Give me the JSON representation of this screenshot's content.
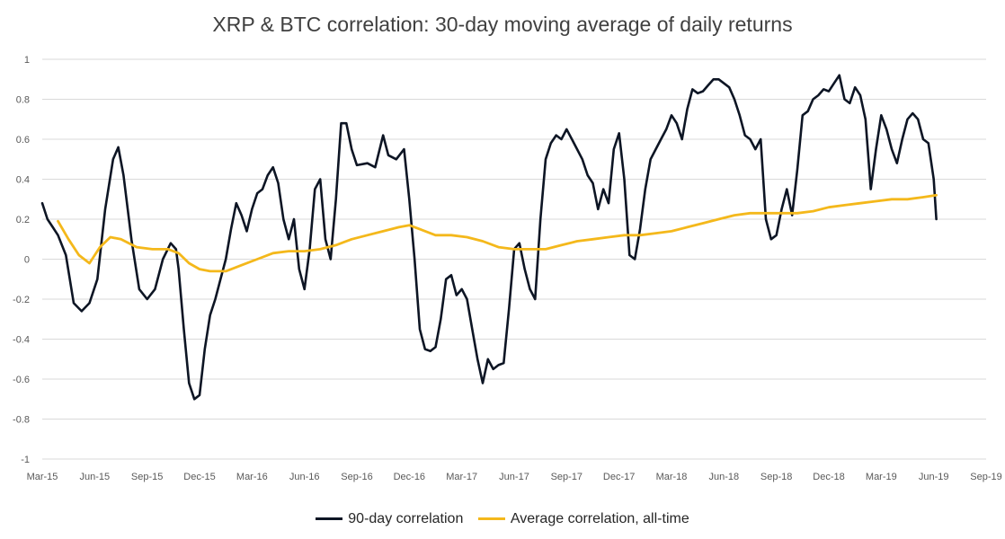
{
  "chart_data": {
    "type": "line",
    "title": "XRP & BTC correlation: 30-day moving average of daily returns",
    "xlabel": "",
    "ylabel": "",
    "ylim": [
      -1,
      1
    ],
    "yticks": [
      "1",
      "0.8",
      "0.6",
      "0.4",
      "0.2",
      "0",
      "-0.2",
      "-0.4",
      "-0.6",
      "-0.8",
      "-1"
    ],
    "xticks": [
      "Mar-15",
      "Jun-15",
      "Sep-15",
      "Dec-15",
      "Mar-16",
      "Jun-16",
      "Sep-16",
      "Dec-16",
      "Mar-17",
      "Jun-17",
      "Sep-17",
      "Dec-17",
      "Mar-18",
      "Jun-18",
      "Sep-18",
      "Dec-18",
      "Mar-19",
      "Jun-19",
      "Sep-19"
    ],
    "grid": true,
    "legend_position": "bottom",
    "series": [
      {
        "name": "90-day correlation",
        "color": "#0d1524",
        "points": [
          [
            0.0,
            0.28
          ],
          [
            0.1,
            0.2
          ],
          [
            0.2,
            0.16
          ],
          [
            0.3,
            0.12
          ],
          [
            0.45,
            0.02
          ],
          [
            0.6,
            -0.22
          ],
          [
            0.75,
            -0.26
          ],
          [
            0.9,
            -0.22
          ],
          [
            1.05,
            -0.1
          ],
          [
            1.2,
            0.25
          ],
          [
            1.35,
            0.5
          ],
          [
            1.45,
            0.56
          ],
          [
            1.55,
            0.42
          ],
          [
            1.7,
            0.1
          ],
          [
            1.85,
            -0.15
          ],
          [
            2.0,
            -0.2
          ],
          [
            2.15,
            -0.15
          ],
          [
            2.3,
            0.0
          ],
          [
            2.45,
            0.08
          ],
          [
            2.55,
            0.05
          ],
          [
            2.6,
            -0.05
          ],
          [
            2.7,
            -0.35
          ],
          [
            2.8,
            -0.62
          ],
          [
            2.9,
            -0.7
          ],
          [
            3.0,
            -0.68
          ],
          [
            3.1,
            -0.45
          ],
          [
            3.2,
            -0.28
          ],
          [
            3.3,
            -0.2
          ],
          [
            3.4,
            -0.1
          ],
          [
            3.5,
            0.0
          ],
          [
            3.6,
            0.15
          ],
          [
            3.7,
            0.28
          ],
          [
            3.8,
            0.22
          ],
          [
            3.9,
            0.14
          ],
          [
            4.0,
            0.25
          ],
          [
            4.1,
            0.33
          ],
          [
            4.2,
            0.35
          ],
          [
            4.3,
            0.42
          ],
          [
            4.4,
            0.46
          ],
          [
            4.5,
            0.38
          ],
          [
            4.6,
            0.2
          ],
          [
            4.7,
            0.1
          ],
          [
            4.8,
            0.2
          ],
          [
            4.9,
            -0.05
          ],
          [
            5.0,
            -0.15
          ],
          [
            5.1,
            0.05
          ],
          [
            5.2,
            0.35
          ],
          [
            5.3,
            0.4
          ],
          [
            5.4,
            0.1
          ],
          [
            5.5,
            0.0
          ],
          [
            5.6,
            0.3
          ],
          [
            5.7,
            0.68
          ],
          [
            5.8,
            0.68
          ],
          [
            5.9,
            0.55
          ],
          [
            6.0,
            0.47
          ],
          [
            6.2,
            0.48
          ],
          [
            6.35,
            0.46
          ],
          [
            6.5,
            0.62
          ],
          [
            6.6,
            0.52
          ],
          [
            6.75,
            0.5
          ],
          [
            6.9,
            0.55
          ],
          [
            7.0,
            0.3
          ],
          [
            7.1,
            0.0
          ],
          [
            7.2,
            -0.35
          ],
          [
            7.3,
            -0.45
          ],
          [
            7.4,
            -0.46
          ],
          [
            7.5,
            -0.44
          ],
          [
            7.6,
            -0.3
          ],
          [
            7.7,
            -0.1
          ],
          [
            7.8,
            -0.08
          ],
          [
            7.9,
            -0.18
          ],
          [
            8.0,
            -0.15
          ],
          [
            8.1,
            -0.2
          ],
          [
            8.2,
            -0.35
          ],
          [
            8.3,
            -0.5
          ],
          [
            8.4,
            -0.62
          ],
          [
            8.5,
            -0.5
          ],
          [
            8.6,
            -0.55
          ],
          [
            8.7,
            -0.53
          ],
          [
            8.8,
            -0.52
          ],
          [
            8.9,
            -0.25
          ],
          [
            9.0,
            0.05
          ],
          [
            9.1,
            0.08
          ],
          [
            9.2,
            -0.05
          ],
          [
            9.3,
            -0.15
          ],
          [
            9.4,
            -0.2
          ],
          [
            9.5,
            0.2
          ],
          [
            9.6,
            0.5
          ],
          [
            9.7,
            0.58
          ],
          [
            9.8,
            0.62
          ],
          [
            9.9,
            0.6
          ],
          [
            10.0,
            0.65
          ],
          [
            10.1,
            0.6
          ],
          [
            10.2,
            0.55
          ],
          [
            10.3,
            0.5
          ],
          [
            10.4,
            0.42
          ],
          [
            10.5,
            0.38
          ],
          [
            10.6,
            0.25
          ],
          [
            10.7,
            0.35
          ],
          [
            10.8,
            0.28
          ],
          [
            10.9,
            0.55
          ],
          [
            11.0,
            0.63
          ],
          [
            11.1,
            0.4
          ],
          [
            11.2,
            0.02
          ],
          [
            11.3,
            0.0
          ],
          [
            11.4,
            0.15
          ],
          [
            11.5,
            0.35
          ],
          [
            11.6,
            0.5
          ],
          [
            11.7,
            0.55
          ],
          [
            11.8,
            0.6
          ],
          [
            11.9,
            0.65
          ],
          [
            12.0,
            0.72
          ],
          [
            12.1,
            0.68
          ],
          [
            12.2,
            0.6
          ],
          [
            12.3,
            0.75
          ],
          [
            12.4,
            0.85
          ],
          [
            12.5,
            0.83
          ],
          [
            12.6,
            0.84
          ],
          [
            12.7,
            0.87
          ],
          [
            12.8,
            0.9
          ],
          [
            12.9,
            0.9
          ],
          [
            13.0,
            0.88
          ],
          [
            13.1,
            0.86
          ],
          [
            13.2,
            0.8
          ],
          [
            13.3,
            0.72
          ],
          [
            13.4,
            0.62
          ],
          [
            13.5,
            0.6
          ],
          [
            13.6,
            0.55
          ],
          [
            13.7,
            0.6
          ],
          [
            13.8,
            0.2
          ],
          [
            13.9,
            0.1
          ],
          [
            14.0,
            0.12
          ],
          [
            14.1,
            0.25
          ],
          [
            14.2,
            0.35
          ],
          [
            14.3,
            0.22
          ],
          [
            14.4,
            0.45
          ],
          [
            14.5,
            0.72
          ],
          [
            14.6,
            0.74
          ],
          [
            14.7,
            0.8
          ],
          [
            14.8,
            0.82
          ],
          [
            14.9,
            0.85
          ],
          [
            15.0,
            0.84
          ],
          [
            15.1,
            0.88
          ],
          [
            15.2,
            0.92
          ],
          [
            15.3,
            0.8
          ],
          [
            15.4,
            0.78
          ],
          [
            15.5,
            0.86
          ],
          [
            15.6,
            0.82
          ],
          [
            15.7,
            0.7
          ],
          [
            15.8,
            0.35
          ],
          [
            15.9,
            0.55
          ],
          [
            16.0,
            0.72
          ],
          [
            16.1,
            0.65
          ],
          [
            16.2,
            0.55
          ],
          [
            16.3,
            0.48
          ],
          [
            16.4,
            0.6
          ],
          [
            16.5,
            0.7
          ],
          [
            16.6,
            0.73
          ],
          [
            16.7,
            0.7
          ],
          [
            16.8,
            0.6
          ],
          [
            16.9,
            0.58
          ],
          [
            17.0,
            0.4
          ],
          [
            17.05,
            0.2
          ]
        ]
      },
      {
        "name": "Average correlation, all-time",
        "color": "#f4b81b",
        "points": [
          [
            0.3,
            0.19
          ],
          [
            0.5,
            0.1
          ],
          [
            0.7,
            0.02
          ],
          [
            0.9,
            -0.02
          ],
          [
            1.1,
            0.06
          ],
          [
            1.3,
            0.11
          ],
          [
            1.5,
            0.1
          ],
          [
            1.8,
            0.06
          ],
          [
            2.1,
            0.05
          ],
          [
            2.4,
            0.05
          ],
          [
            2.6,
            0.03
          ],
          [
            2.8,
            -0.02
          ],
          [
            3.0,
            -0.05
          ],
          [
            3.2,
            -0.06
          ],
          [
            3.5,
            -0.06
          ],
          [
            3.8,
            -0.03
          ],
          [
            4.1,
            0.0
          ],
          [
            4.4,
            0.03
          ],
          [
            4.7,
            0.04
          ],
          [
            5.0,
            0.04
          ],
          [
            5.3,
            0.05
          ],
          [
            5.6,
            0.07
          ],
          [
            5.9,
            0.1
          ],
          [
            6.2,
            0.12
          ],
          [
            6.5,
            0.14
          ],
          [
            6.8,
            0.16
          ],
          [
            7.0,
            0.17
          ],
          [
            7.2,
            0.15
          ],
          [
            7.5,
            0.12
          ],
          [
            7.8,
            0.12
          ],
          [
            8.1,
            0.11
          ],
          [
            8.4,
            0.09
          ],
          [
            8.7,
            0.06
          ],
          [
            9.0,
            0.05
          ],
          [
            9.3,
            0.05
          ],
          [
            9.6,
            0.05
          ],
          [
            9.9,
            0.07
          ],
          [
            10.2,
            0.09
          ],
          [
            10.5,
            0.1
          ],
          [
            10.8,
            0.11
          ],
          [
            11.1,
            0.12
          ],
          [
            11.4,
            0.12
          ],
          [
            11.7,
            0.13
          ],
          [
            12.0,
            0.14
          ],
          [
            12.3,
            0.16
          ],
          [
            12.6,
            0.18
          ],
          [
            12.9,
            0.2
          ],
          [
            13.2,
            0.22
          ],
          [
            13.5,
            0.23
          ],
          [
            13.8,
            0.23
          ],
          [
            14.1,
            0.23
          ],
          [
            14.4,
            0.23
          ],
          [
            14.7,
            0.24
          ],
          [
            15.0,
            0.26
          ],
          [
            15.3,
            0.27
          ],
          [
            15.6,
            0.28
          ],
          [
            15.9,
            0.29
          ],
          [
            16.2,
            0.3
          ],
          [
            16.5,
            0.3
          ],
          [
            16.8,
            0.31
          ],
          [
            17.05,
            0.32
          ]
        ]
      }
    ]
  }
}
